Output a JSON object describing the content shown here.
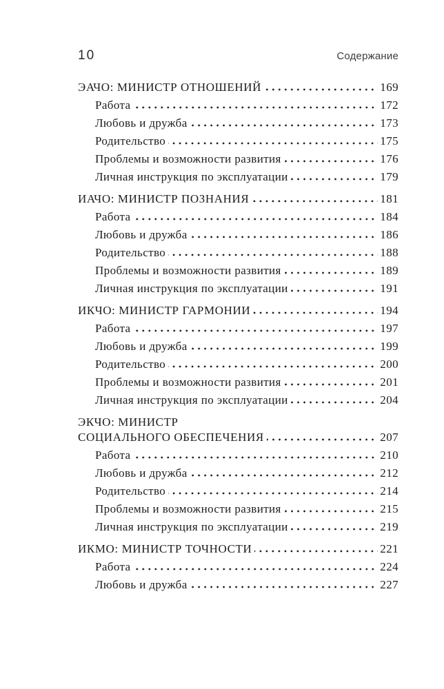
{
  "page": {
    "number": "10",
    "running_title": "Содержание"
  },
  "toc": {
    "sections": [
      {
        "title": "ЭАЧО: МИНИСТР ОТНОШЕНИЙ",
        "page": "169",
        "items": [
          {
            "label": "Работа",
            "page": "172"
          },
          {
            "label": "Любовь и дружба",
            "page": "173"
          },
          {
            "label": "Родительство",
            "page": "175"
          },
          {
            "label": "Проблемы и возможности развития",
            "page": "176"
          },
          {
            "label": "Личная инструкция по эксплуатации",
            "page": "179"
          }
        ]
      },
      {
        "title": "ИАЧО: МИНИСТР ПОЗНАНИЯ",
        "page": "181",
        "items": [
          {
            "label": "Работа",
            "page": "184"
          },
          {
            "label": "Любовь и дружба",
            "page": "186"
          },
          {
            "label": "Родительство",
            "page": "188"
          },
          {
            "label": "Проблемы и возможности развития",
            "page": "189"
          },
          {
            "label": "Личная инструкция по эксплуатации",
            "page": "191"
          }
        ]
      },
      {
        "title": "ИКЧО: МИНИСТР ГАРМОНИИ",
        "page": "194",
        "items": [
          {
            "label": "Работа",
            "page": "197"
          },
          {
            "label": "Любовь и дружба",
            "page": "199"
          },
          {
            "label": "Родительство",
            "page": "200"
          },
          {
            "label": "Проблемы и возможности развития",
            "page": "201"
          },
          {
            "label": "Личная инструкция по эксплуатации",
            "page": "204"
          }
        ]
      },
      {
        "title_line1": "ЭКЧО: МИНИСТР",
        "title_line2": "СОЦИАЛЬНОГО ОБЕСПЕЧЕНИЯ",
        "page": "207",
        "items": [
          {
            "label": "Работа",
            "page": "210"
          },
          {
            "label": "Любовь и дружба",
            "page": "212"
          },
          {
            "label": "Родительство",
            "page": "214"
          },
          {
            "label": "Проблемы и возможности развития",
            "page": "215"
          },
          {
            "label": "Личная инструкция по эксплуатации",
            "page": "219"
          }
        ]
      },
      {
        "title": "ИКМО: МИНИСТР ТОЧНОСТИ",
        "page": "221",
        "items": [
          {
            "label": "Работа",
            "page": "224"
          },
          {
            "label": "Любовь и дружба",
            "page": "227"
          }
        ]
      }
    ]
  }
}
